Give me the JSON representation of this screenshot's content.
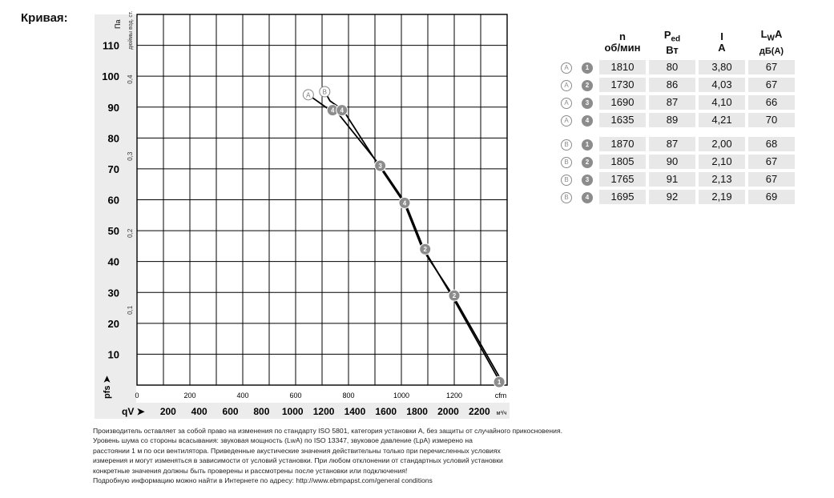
{
  "page_title": "Кривая:",
  "chart_data": {
    "type": "line",
    "xlabel_primary": "cfm",
    "x_primary_ticks": [
      0,
      200,
      400,
      600,
      800,
      1000,
      1200
    ],
    "x_primary_lim": [
      0,
      1400
    ],
    "xlabel_secondary_symbol": "qV",
    "xlabel_secondary_unit": "м³/ч",
    "x_secondary_ticks": [
      200,
      400,
      600,
      800,
      1000,
      1200,
      1400,
      1600,
      1800,
      2000,
      2200
    ],
    "ylabel_primary": "Па",
    "ylabel_primary_symbol": "pfs",
    "y_primary_ticks": [
      10,
      20,
      30,
      40,
      50,
      60,
      70,
      80,
      90,
      100,
      110
    ],
    "ylim": [
      0,
      120
    ],
    "ylabel_secondary": "дюймы вод. ст.",
    "y_secondary_ticks": [
      "0,1",
      "0,2",
      "0,3",
      "0,4"
    ],
    "grid": true,
    "series": [
      {
        "name": "A",
        "x": [
          648,
          730,
          760,
          920,
          1015,
          1085,
          1190,
          1367
        ],
        "y": [
          94,
          89,
          88,
          71,
          59,
          44,
          29,
          2
        ]
      },
      {
        "name": "B",
        "x": [
          710,
          730,
          780,
          915,
          1010,
          1080,
          1195,
          1375
        ],
        "y": [
          95,
          92,
          89,
          71,
          59,
          44,
          29,
          2
        ]
      }
    ],
    "markers": [
      {
        "series": "A",
        "label": "A",
        "x": 648,
        "y": 94,
        "style": "letter"
      },
      {
        "series": "B",
        "label": "B",
        "x": 710,
        "y": 95,
        "style": "letter"
      },
      {
        "label": "4",
        "x": 740,
        "y": 89
      },
      {
        "label": "4",
        "x": 775,
        "y": 89
      },
      {
        "label": "3",
        "x": 920,
        "y": 71
      },
      {
        "label": "4",
        "x": 1012,
        "y": 59
      },
      {
        "label": "2",
        "x": 1090,
        "y": 44
      },
      {
        "label": "2",
        "x": 1200,
        "y": 29
      },
      {
        "label": "1",
        "x": 1370,
        "y": 1
      }
    ]
  },
  "table": {
    "headers": [
      {
        "line1": "n",
        "line2": "об/мин"
      },
      {
        "line1": "P",
        "sub": "ed",
        "line2": "Вт"
      },
      {
        "line1": "I",
        "line2": "A"
      },
      {
        "line1": "L",
        "sub": "W",
        "suffix": "A",
        "line2": "дБ(A)"
      }
    ],
    "rows": [
      {
        "curve": "A",
        "point": "1",
        "n": "1810",
        "p": "80",
        "i": "3,80",
        "lwa": "67"
      },
      {
        "curve": "A",
        "point": "2",
        "n": "1730",
        "p": "86",
        "i": "4,03",
        "lwa": "67"
      },
      {
        "curve": "A",
        "point": "3",
        "n": "1690",
        "p": "87",
        "i": "4,10",
        "lwa": "66"
      },
      {
        "curve": "A",
        "point": "4",
        "n": "1635",
        "p": "89",
        "i": "4,21",
        "lwa": "70"
      },
      {
        "curve": "B",
        "point": "1",
        "n": "1870",
        "p": "87",
        "i": "2,00",
        "lwa": "68"
      },
      {
        "curve": "B",
        "point": "2",
        "n": "1805",
        "p": "90",
        "i": "2,10",
        "lwa": "67"
      },
      {
        "curve": "B",
        "point": "3",
        "n": "1765",
        "p": "91",
        "i": "2,13",
        "lwa": "67"
      },
      {
        "curve": "B",
        "point": "4",
        "n": "1695",
        "p": "92",
        "i": "2,19",
        "lwa": "69"
      }
    ]
  },
  "notes": [
    "Производитель оставляет за собой право на изменения по стандарту ISO 5801, категория установки A, без защиты от случайного прикосновения.",
    "Уровень шума со стороны всасывания: звуковая мощность (LwA) по ISO 13347, звуковое давление (LpA) измерено на",
    "расстоянии 1 м по оси вентилятора. Приведенные акустические значения действительны только при перечисленных условиях",
    "измерения и могут изменяться в зависимости от условий установки. При любом отклонении от стандартных условий установки",
    "конкретные значения должны быть проверены и рассмотрены после установки или подключения!",
    "Подробную информацию можно найти в Интернете по адресу: http://www.ebmpapst.com/general conditions"
  ]
}
